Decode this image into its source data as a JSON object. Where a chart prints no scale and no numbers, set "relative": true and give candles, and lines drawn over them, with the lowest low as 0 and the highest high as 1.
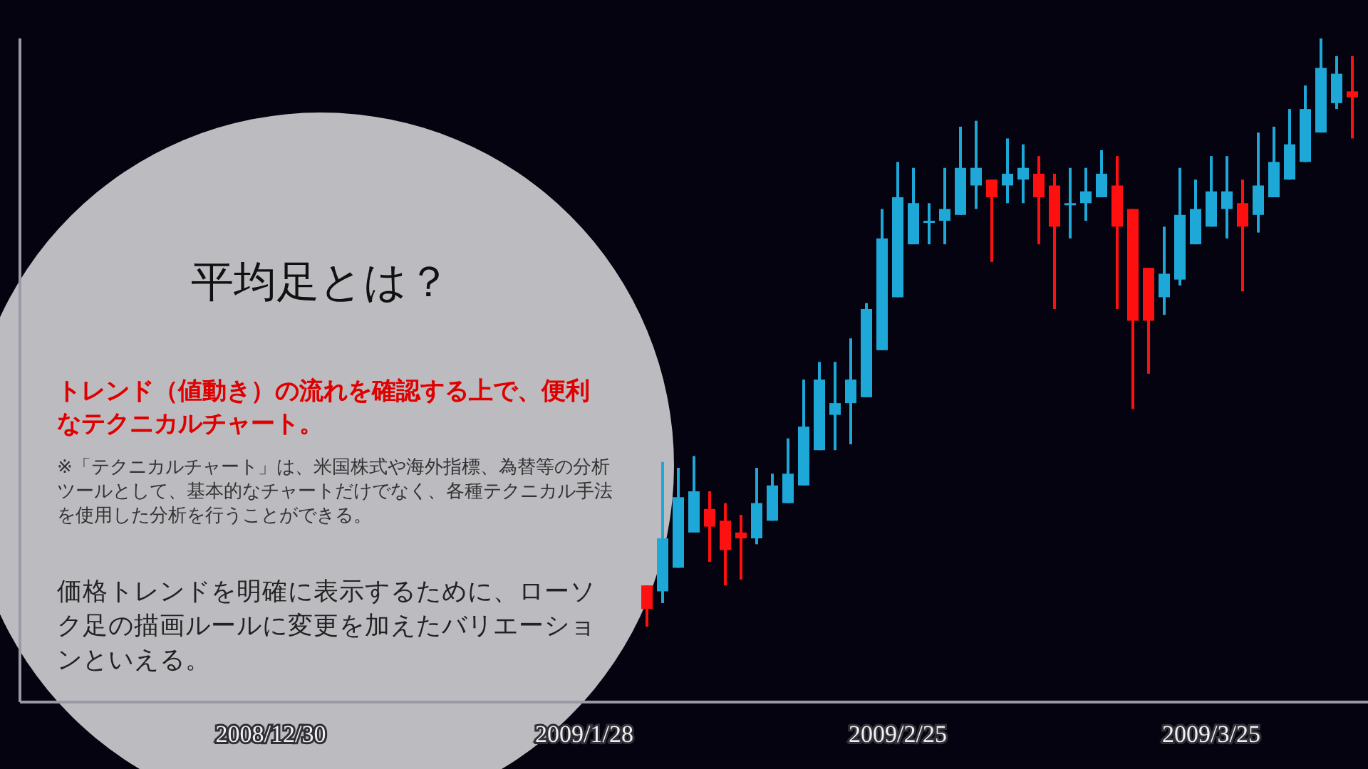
{
  "chart_data": [
    {
      "type": "other",
      "title": "平均足とは？",
      "subtitle": "トレンド（値動き）の流れを確認する上で、便利なテクニカルチャート。",
      "annotations": [
        "※「テクニカルチャート」は、米国株式や海外指標、為替等の分析ツールとして、基本的なチャートだけでなく、各種テクニカル手法を使用した分析を行うことができる。",
        "価格トレンドを明確に表示するために、ローソク足の描画ルールに変更を加えたバリエーションといえる。"
      ]
    },
    {
      "type": "candlestick",
      "relative": true,
      "categories": [
        null,
        null,
        null,
        null,
        null,
        null,
        null,
        null,
        null,
        null,
        null,
        null,
        null,
        null,
        null,
        null,
        "2008/12/30",
        null,
        null,
        null,
        null,
        null,
        null,
        null,
        null,
        null,
        null,
        null,
        null,
        null,
        null,
        null,
        null,
        null,
        null,
        null,
        "2009/1/28",
        null,
        null,
        null,
        null,
        null,
        null,
        null,
        null,
        null,
        null,
        null,
        null,
        null,
        null,
        null,
        null,
        null,
        null,
        null,
        "2009/2/25",
        null,
        null,
        null,
        null,
        null,
        null,
        null,
        null,
        null,
        null,
        null,
        null,
        null,
        null,
        null,
        null,
        null,
        null,
        null,
        "2009/3/25",
        null,
        null,
        null,
        null,
        null,
        null,
        null,
        null,
        null
      ],
      "ohlc": [
        null,
        null,
        null,
        null,
        null,
        null,
        null,
        null,
        null,
        null,
        null,
        null,
        null,
        null,
        null,
        null,
        null,
        null,
        null,
        null,
        null,
        null,
        null,
        null,
        null,
        null,
        null,
        null,
        null,
        null,
        null,
        null,
        null,
        null,
        null,
        null,
        null,
        null,
        null,
        null,
        [
          0.07,
          0.07,
          0,
          0.03
        ],
        [
          0.06,
          0.28,
          0.04,
          0.15
        ],
        [
          0.1,
          0.27,
          0.1,
          0.22
        ],
        [
          0.16,
          0.29,
          0.16,
          0.23
        ],
        [
          0.2,
          0.23,
          0.11,
          0.17
        ],
        [
          0.18,
          0.21,
          0.07,
          0.13
        ],
        [
          0.16,
          0.19,
          0.08,
          0.15
        ],
        [
          0.15,
          0.27,
          0.14,
          0.21
        ],
        [
          0.18,
          0.26,
          0.18,
          0.24
        ],
        [
          0.21,
          0.32,
          0.21,
          0.26
        ],
        [
          0.24,
          0.42,
          0.24,
          0.34
        ],
        [
          0.3,
          0.45,
          0.3,
          0.42
        ],
        [
          0.36,
          0.45,
          0.3,
          0.38
        ],
        [
          0.38,
          0.49,
          0.31,
          0.42
        ],
        [
          0.39,
          0.55,
          0.39,
          0.54
        ],
        [
          0.47,
          0.71,
          0.47,
          0.66
        ],
        [
          0.56,
          0.79,
          0.56,
          0.73
        ],
        [
          0.65,
          0.78,
          0.65,
          0.72
        ],
        [
          0.69,
          0.72,
          0.65,
          0.69
        ],
        [
          0.69,
          0.78,
          0.65,
          0.71
        ],
        [
          0.7,
          0.85,
          0.7,
          0.78
        ],
        [
          0.75,
          0.86,
          0.71,
          0.78
        ],
        [
          0.76,
          0.76,
          0.62,
          0.73
        ],
        [
          0.75,
          0.83,
          0.72,
          0.77
        ],
        [
          0.76,
          0.82,
          0.72,
          0.78
        ],
        [
          0.77,
          0.8,
          0.65,
          0.73
        ],
        [
          0.75,
          0.77,
          0.54,
          0.68
        ],
        [
          0.72,
          0.78,
          0.66,
          0.72
        ],
        [
          0.72,
          0.78,
          0.69,
          0.74
        ],
        [
          0.73,
          0.81,
          0.73,
          0.77
        ],
        [
          0.75,
          0.8,
          0.54,
          0.68
        ],
        [
          0.71,
          0.71,
          0.37,
          0.52
        ],
        [
          0.61,
          0.61,
          0.43,
          0.52
        ],
        [
          0.56,
          0.68,
          0.53,
          0.6
        ],
        [
          0.59,
          0.78,
          0.58,
          0.7
        ],
        [
          0.65,
          0.76,
          0.65,
          0.71
        ],
        [
          0.68,
          0.8,
          0.68,
          0.74
        ],
        [
          0.71,
          0.8,
          0.66,
          0.74
        ],
        [
          0.72,
          0.76,
          0.57,
          0.68
        ],
        [
          0.7,
          0.84,
          0.67,
          0.75
        ],
        [
          0.73,
          0.85,
          0.73,
          0.79
        ],
        [
          0.76,
          0.88,
          0.76,
          0.82
        ],
        [
          0.79,
          0.92,
          0.79,
          0.88
        ],
        [
          0.84,
          1,
          0.84,
          0.95
        ],
        [
          0.89,
          0.97,
          0.88,
          0.94
        ],
        [
          0.91,
          0.97,
          0.83,
          0.9
        ]
      ],
      "colors": [
        null,
        null,
        null,
        null,
        null,
        null,
        null,
        null,
        null,
        null,
        null,
        null,
        null,
        null,
        null,
        null,
        null,
        null,
        null,
        null,
        null,
        null,
        null,
        null,
        null,
        null,
        null,
        null,
        null,
        null,
        null,
        null,
        null,
        null,
        null,
        null,
        null,
        null,
        null,
        null,
        "#ff1010",
        "#1ea8d8",
        "#1ea8d8",
        "#1ea8d8",
        "#ff1010",
        "#ff1010",
        "#ff1010",
        "#1ea8d8",
        "#1ea8d8",
        "#1ea8d8",
        "#1ea8d8",
        "#1ea8d8",
        "#1ea8d8",
        "#1ea8d8",
        "#1ea8d8",
        "#1ea8d8",
        "#1ea8d8",
        "#1ea8d8",
        "#1ea8d8",
        "#1ea8d8",
        "#1ea8d8",
        "#1ea8d8",
        "#ff1010",
        "#1ea8d8",
        "#1ea8d8",
        "#ff1010",
        "#ff1010",
        "#1ea8d8",
        "#1ea8d8",
        "#1ea8d8",
        "#ff1010",
        "#ff1010",
        "#ff1010",
        "#1ea8d8",
        "#1ea8d8",
        "#1ea8d8",
        "#1ea8d8",
        "#1ea8d8",
        "#ff1010",
        "#1ea8d8",
        "#1ea8d8",
        "#1ea8d8",
        "#1ea8d8",
        "#1ea8d8",
        "#1ea8d8",
        "#ff1010"
      ]
    }
  ]
}
